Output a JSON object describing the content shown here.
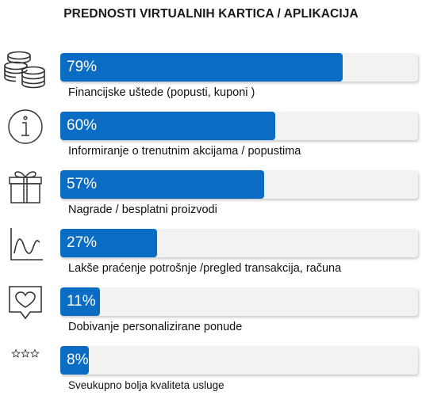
{
  "colors": {
    "bar": "#0a6cc2",
    "track": "#f2f2f2",
    "icon": "#333333"
  },
  "chart_data": {
    "type": "bar",
    "orientation": "horizontal",
    "title": "PREDNOSTI VIRTUALNIH KARTICA / APLIKACIJA",
    "xlim": [
      0,
      100
    ],
    "unit": "%",
    "categories": [
      "Financijske uštede  (popusti, kuponi )",
      "Informiranje o trenutnim akcijama / popustima",
      "Nagrade / besplatni proizvodi",
      "Lakše praćenje potrošnje /pregled transakcija, računa",
      "Dobivanje personalizirane ponude",
      "Sveukupno bolja kvaliteta usluge"
    ],
    "values": [
      79,
      60,
      57,
      27,
      11,
      8
    ],
    "data_labels": [
      "79%",
      "60%",
      "57%",
      "27%",
      "11%",
      "8%"
    ],
    "icons": [
      "coins-icon",
      "info-icon",
      "gift-icon",
      "trend-chart-icon",
      "heart-speech-icon",
      "stars-icon"
    ]
  }
}
